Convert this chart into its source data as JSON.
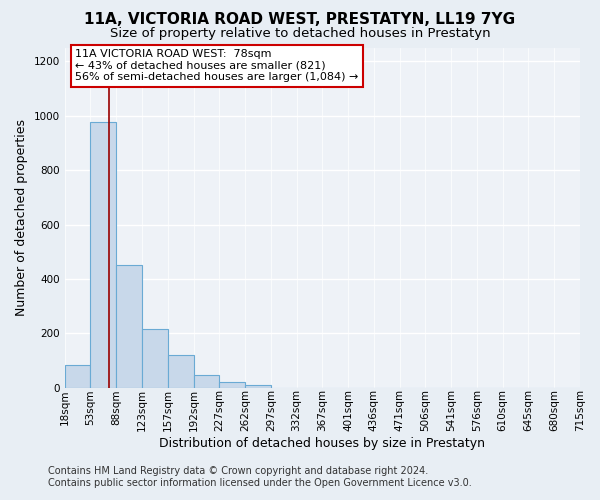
{
  "title": "11A, VICTORIA ROAD WEST, PRESTATYN, LL19 7YG",
  "subtitle": "Size of property relative to detached houses in Prestatyn",
  "xlabel": "Distribution of detached houses by size in Prestatyn",
  "ylabel": "Number of detached properties",
  "bin_labels": [
    "18sqm",
    "53sqm",
    "88sqm",
    "123sqm",
    "157sqm",
    "192sqm",
    "227sqm",
    "262sqm",
    "297sqm",
    "332sqm",
    "367sqm",
    "401sqm",
    "436sqm",
    "471sqm",
    "506sqm",
    "541sqm",
    "576sqm",
    "610sqm",
    "645sqm",
    "680sqm",
    "715sqm"
  ],
  "bar_values": [
    85,
    975,
    450,
    215,
    120,
    48,
    20,
    10,
    0,
    0,
    0,
    0,
    0,
    0,
    0,
    0,
    0,
    0,
    0,
    0
  ],
  "bar_color": "#c8d8ea",
  "bar_edge_color": "#6aaad4",
  "vline_color": "#990000",
  "annotation_box_text": "11A VICTORIA ROAD WEST:  78sqm\n← 43% of detached houses are smaller (821)\n56% of semi-detached houses are larger (1,084) →",
  "annotation_box_facecolor": "#ffffff",
  "annotation_box_edgecolor": "#cc0000",
  "ylim": [
    0,
    1250
  ],
  "yticks": [
    0,
    200,
    400,
    600,
    800,
    1000,
    1200
  ],
  "footer_line1": "Contains HM Land Registry data © Crown copyright and database right 2024.",
  "footer_line2": "Contains public sector information licensed under the Open Government Licence v3.0.",
  "outer_bg_color": "#e8eef4",
  "plot_bg_color": "#eef2f7",
  "grid_color": "#ffffff",
  "title_fontsize": 11,
  "subtitle_fontsize": 9.5,
  "axis_label_fontsize": 9,
  "tick_fontsize": 7.5,
  "annotation_fontsize": 8,
  "footer_fontsize": 7,
  "vline_bin_index": 1,
  "n_bins": 20
}
